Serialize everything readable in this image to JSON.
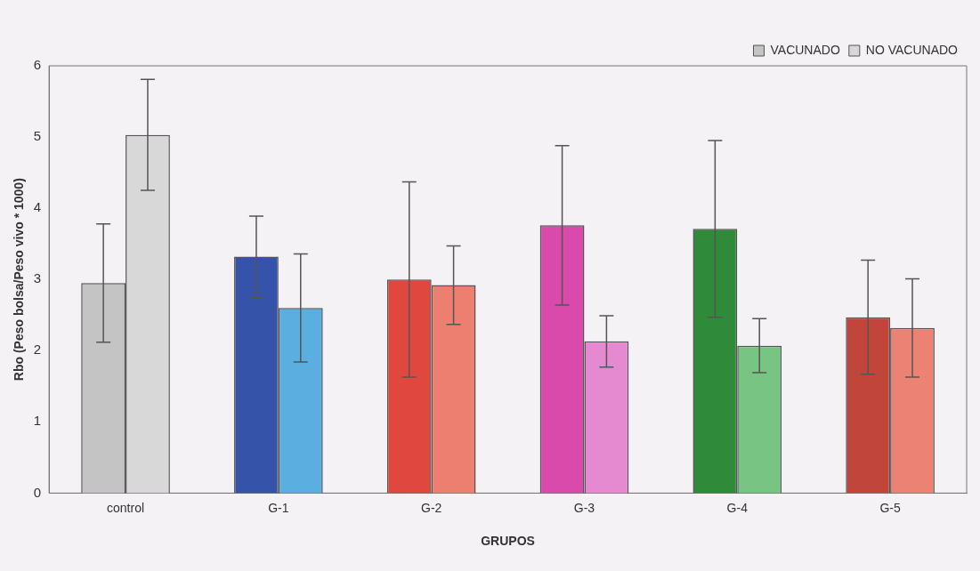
{
  "chart_data": {
    "type": "bar",
    "xlabel": "GRUPOS",
    "ylabel": "Rbo (Peso bolsa/Peso vivo * 1000)",
    "categories": [
      "control",
      "G-1",
      "G-2",
      "G-3",
      "G-4",
      "G-5"
    ],
    "series": [
      {
        "name": "VACUNADO",
        "colors": [
          "#c4c4c4",
          "#3553a8",
          "#e0483f",
          "#d94aab",
          "#2f8a3a",
          "#c2453c"
        ],
        "values": [
          2.95,
          3.32,
          3.0,
          3.76,
          3.71,
          2.47
        ],
        "errors": [
          0.83,
          0.57,
          1.37,
          1.12,
          1.24,
          0.8
        ]
      },
      {
        "name": "NO VACUNADO",
        "colors": [
          "#d8d8d8",
          "#5aaee0",
          "#ec7f70",
          "#e58ad0",
          "#78c483",
          "#ec8274"
        ],
        "values": [
          5.03,
          2.6,
          2.92,
          2.13,
          2.07,
          2.32
        ],
        "errors": [
          0.78,
          0.76,
          0.55,
          0.36,
          0.38,
          0.69
        ]
      }
    ],
    "ylim": [
      0,
      6
    ],
    "yticks": [
      0,
      1,
      2,
      3,
      4,
      5,
      6
    ],
    "grid": false,
    "legend": "top right"
  }
}
